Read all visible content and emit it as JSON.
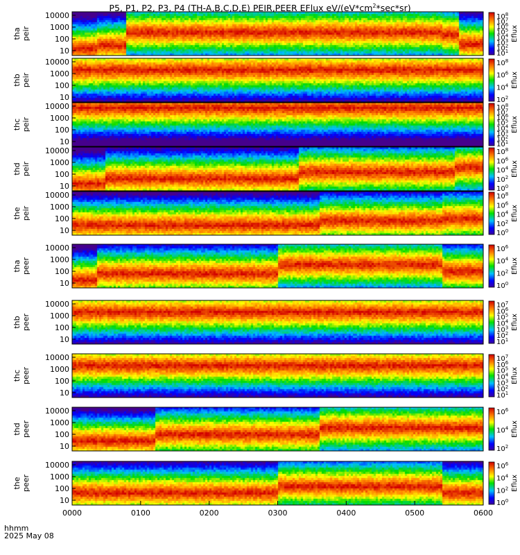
{
  "title": {
    "prefix": "P5, P1, P2, P3, P4 (TH-A,B,C,D,E) PEIR,PEER EFlux eV/(eV*cm",
    "sup": "2",
    "suffix": "*sec*sr)"
  },
  "xaxis": {
    "label_top": "hhmm",
    "label_bottom": "2025 May 08"
  },
  "chart_data": {
    "type": "heatmap",
    "xlabel": "hhmm",
    "x_ticks": [
      "0000",
      "0100",
      "0200",
      "0300",
      "0400",
      "0500",
      "0600"
    ],
    "x_range": [
      "0000",
      "0600"
    ],
    "date": "2025 May 08",
    "colorbar_label": "Eflux",
    "panels": [
      {
        "probe": "tha",
        "species": "peir",
        "y_ticks": [
          "10000",
          "1000",
          "100",
          "10"
        ],
        "cbar": [
          "10^8",
          "10^7",
          "10^6",
          "10^5",
          "10^4",
          "10^3",
          "10^2",
          "10^1"
        ],
        "zones": [
          [
            0,
            0.06,
            0.18
          ],
          [
            0.06,
            0.13,
            0.25
          ],
          [
            0.13,
            0.9,
            0.55
          ],
          [
            0.9,
            0.94,
            0.5
          ],
          [
            0.94,
            1.0,
            0.28
          ]
        ]
      },
      {
        "probe": "thb",
        "species": "peir",
        "y_ticks": [
          "10000",
          "1000",
          "100",
          "10"
        ],
        "cbar": [
          "10^8",
          "10^6",
          "10^4",
          "10^2"
        ],
        "zones": [
          [
            0,
            1.0,
            0.75
          ]
        ]
      },
      {
        "probe": "thc",
        "species": "peir",
        "y_ticks": [
          "10000",
          "1000",
          "100",
          "10"
        ],
        "cbar": [
          "10^8",
          "10^7",
          "10^6",
          "10^5",
          "10^4",
          "10^3",
          "10^2",
          "10^1"
        ],
        "zones": [
          [
            0,
            1.0,
            0.9
          ]
        ]
      },
      {
        "probe": "thd",
        "species": "peir",
        "y_ticks": [
          "10000",
          "1000",
          "100",
          "10"
        ],
        "cbar": [
          "10^8",
          "10^6",
          "10^4",
          "10^2",
          "10^0"
        ],
        "zones": [
          [
            0,
            0.08,
            0.18
          ],
          [
            0.08,
            0.55,
            0.3
          ],
          [
            0.55,
            0.93,
            0.45
          ],
          [
            0.93,
            1.0,
            0.55
          ]
        ]
      },
      {
        "probe": "the",
        "species": "peir",
        "y_ticks": [
          "10000",
          "1000",
          "100",
          "10"
        ],
        "cbar": [
          "10^8",
          "10^6",
          "10^4",
          "10^2",
          "10^0"
        ],
        "zones": [
          [
            0,
            0.6,
            0.25
          ],
          [
            0.6,
            0.9,
            0.35
          ],
          [
            0.9,
            1.0,
            0.4
          ]
        ]
      },
      {
        "probe": "tha",
        "species": "peer",
        "y_ticks": [
          "10000",
          "1000",
          "100",
          "10"
        ],
        "cbar": [
          "10^6",
          "10^4",
          "10^2",
          "10^0"
        ],
        "zones": [
          [
            0,
            0.06,
            0.2
          ],
          [
            0.06,
            0.5,
            0.35
          ],
          [
            0.5,
            0.9,
            0.55
          ],
          [
            0.9,
            1.0,
            0.4
          ]
        ]
      },
      {
        "probe": "thb",
        "species": "peer",
        "y_ticks": [
          "10000",
          "1000",
          "100",
          "10"
        ],
        "cbar": [
          "10^7",
          "10^6",
          "10^5",
          "10^4",
          "10^3",
          "10^2",
          "10^1"
        ],
        "zones": [
          [
            0,
            1.0,
            0.75
          ]
        ]
      },
      {
        "probe": "thc",
        "species": "peer",
        "y_ticks": [
          "10000",
          "1000",
          "100",
          "10"
        ],
        "cbar": [
          "10^7",
          "10^6",
          "10^5",
          "10^4",
          "10^3",
          "10^2",
          "10^1"
        ],
        "zones": [
          [
            0,
            1.0,
            0.75
          ]
        ]
      },
      {
        "probe": "thd",
        "species": "peer",
        "y_ticks": [
          "10000",
          "1000",
          "100",
          "10"
        ],
        "cbar": [
          "10^6",
          "10^4",
          "10^2"
        ],
        "zones": [
          [
            0,
            0.2,
            0.25
          ],
          [
            0.2,
            0.6,
            0.4
          ],
          [
            0.6,
            1.0,
            0.55
          ]
        ]
      },
      {
        "probe": "the",
        "species": "peer",
        "y_ticks": [
          "10000",
          "1000",
          "100",
          "10"
        ],
        "cbar": [
          "10^6",
          "10^4",
          "10^2",
          "10^0"
        ],
        "zones": [
          [
            0,
            0.5,
            0.3
          ],
          [
            0.5,
            0.9,
            0.45
          ],
          [
            0.9,
            1.0,
            0.3
          ]
        ]
      }
    ]
  }
}
